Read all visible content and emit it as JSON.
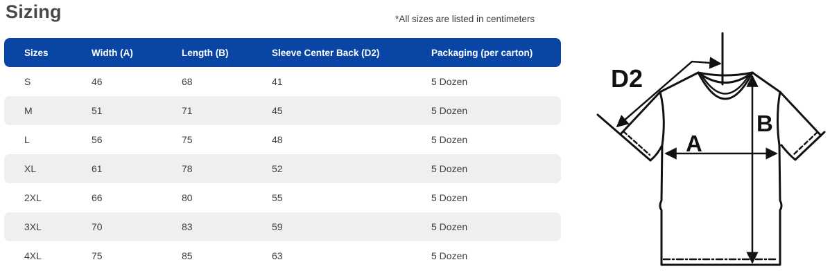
{
  "header": {
    "title": "Sizing",
    "note": "*All sizes are listed in centimeters"
  },
  "table": {
    "columns": [
      "Sizes",
      "Width (A)",
      "Length (B)",
      "Sleeve Center Back (D2)",
      "Packaging (per carton)"
    ],
    "rows": [
      [
        "S",
        "46",
        "68",
        "41",
        "5 Dozen"
      ],
      [
        "M",
        "51",
        "71",
        "45",
        "5 Dozen"
      ],
      [
        "L",
        "56",
        "75",
        "48",
        "5 Dozen"
      ],
      [
        "XL",
        "61",
        "78",
        "52",
        "5 Dozen"
      ],
      [
        "2XL",
        "66",
        "80",
        "55",
        "5 Dozen"
      ],
      [
        "3XL",
        "70",
        "83",
        "59",
        "5 Dozen"
      ],
      [
        "4XL",
        "75",
        "85",
        "63",
        "5 Dozen"
      ]
    ]
  },
  "diagram": {
    "labels": {
      "sleeve_center_back": "D2",
      "width": "A",
      "length": "B"
    }
  },
  "colors": {
    "header_bg": "#0845a5",
    "header_text": "#ffffff",
    "row_alt_bg": "#efefef",
    "body_text": "#3d3d3d",
    "line": "#111111"
  }
}
